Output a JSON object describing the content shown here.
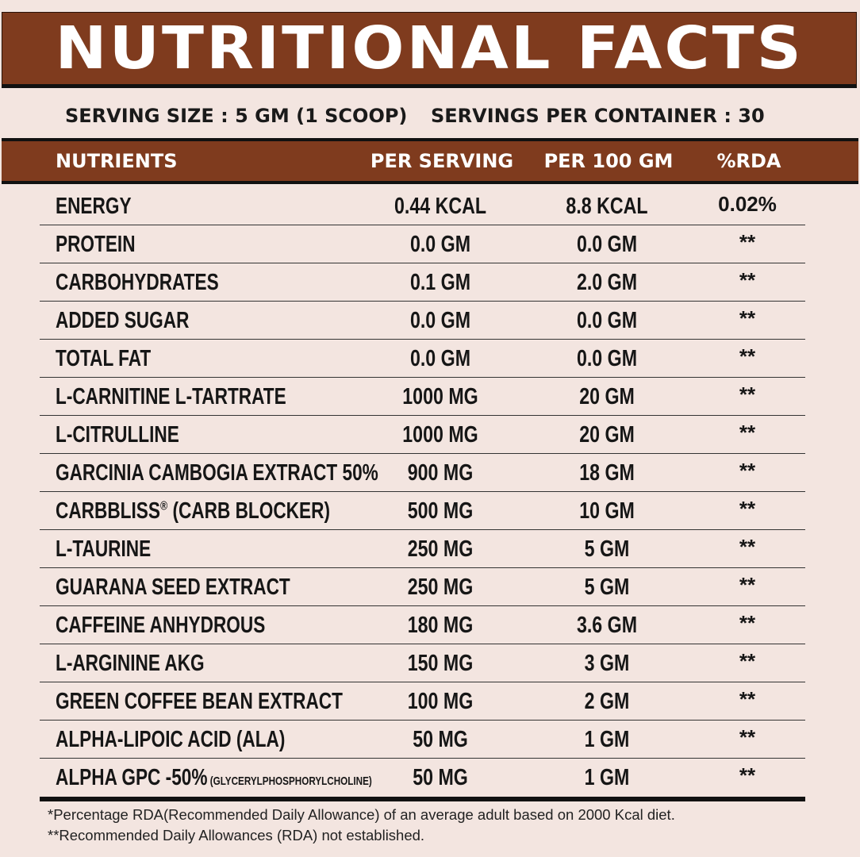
{
  "title": "NUTRITIONAL FACTS",
  "serving_size": "SERVING SIZE : 5 GM (1 SCOOP)",
  "servings_per_container": "SERVINGS PER CONTAINER : 30",
  "colors": {
    "brand": "#7f3b1e",
    "background": "#f3e5e0"
  },
  "columns": [
    "NUTRIENTS",
    "PER SERVING",
    "PER 100 GM",
    "%RDA"
  ],
  "rows": [
    {
      "name": "ENERGY",
      "per_serving": "0.44 KCAL",
      "per_100": "8.8 KCAL",
      "rda": "0.02%"
    },
    {
      "name": "PROTEIN",
      "per_serving": "0.0 GM",
      "per_100": "0.0 GM",
      "rda": "**"
    },
    {
      "name": "CARBOHYDRATES",
      "per_serving": "0.1 GM",
      "per_100": "2.0 GM",
      "rda": "**"
    },
    {
      "name": "ADDED SUGAR",
      "per_serving": "0.0 GM",
      "per_100": "0.0 GM",
      "rda": "**"
    },
    {
      "name": "TOTAL FAT",
      "per_serving": "0.0 GM",
      "per_100": "0.0 GM",
      "rda": "**"
    },
    {
      "name": "L-CARNITINE L-TARTRATE",
      "per_serving": "1000 MG",
      "per_100": "20 GM",
      "rda": "**"
    },
    {
      "name": "L-CITRULLINE",
      "per_serving": "1000 MG",
      "per_100": "20 GM",
      "rda": "**"
    },
    {
      "name": "GARCINIA CAMBOGIA EXTRACT 50%",
      "per_serving": "900 MG",
      "per_100": "18 GM",
      "rda": "**"
    },
    {
      "name": "CARBBLISS",
      "name_sup": "®",
      "name_suffix": " (CARB BLOCKER)",
      "per_serving": "500 MG",
      "per_100": "10 GM",
      "rda": "**"
    },
    {
      "name": "L-TAURINE",
      "per_serving": "250 MG",
      "per_100": "5 GM",
      "rda": "**"
    },
    {
      "name": "GUARANA SEED EXTRACT",
      "per_serving": "250 MG",
      "per_100": "5 GM",
      "rda": "**"
    },
    {
      "name": "CAFFEINE ANHYDROUS",
      "per_serving": "180 MG",
      "per_100": "3.6 GM",
      "rda": "**"
    },
    {
      "name": "L-ARGININE AKG",
      "per_serving": "150 MG",
      "per_100": "3 GM",
      "rda": "**"
    },
    {
      "name": "GREEN COFFEE BEAN EXTRACT",
      "per_serving": "100 MG",
      "per_100": "2 GM",
      "rda": "**"
    },
    {
      "name": "ALPHA-LIPOIC ACID (ALA)",
      "per_serving": "50 MG",
      "per_100": "1 GM",
      "rda": "**"
    },
    {
      "name": "ALPHA GPC -50%",
      "name_small": " (GLYCERYLPHOSPHORYLCHOLINE)",
      "per_serving": "50 MG",
      "per_100": "1 GM",
      "rda": "**"
    }
  ],
  "footnotes": [
    "*Percentage RDA(Recommended Daily Allowance) of an average adult based on 2000 Kcal diet.",
    "**Recommended Daily Allowances (RDA) not established."
  ]
}
